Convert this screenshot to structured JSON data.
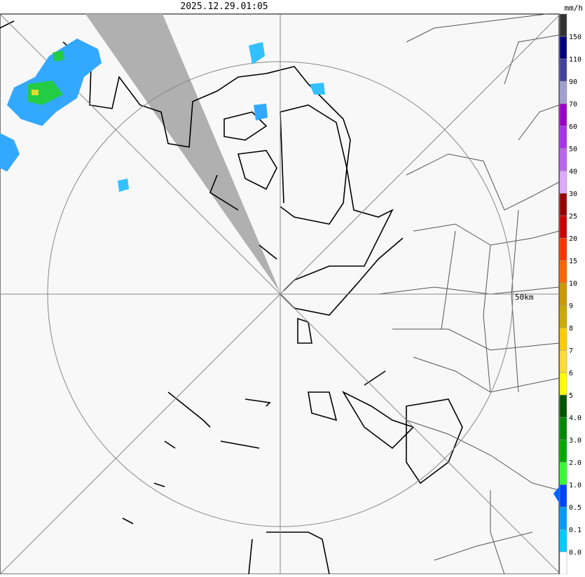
{
  "header": {
    "timestamp": "2025.12.29.01:05"
  },
  "map": {
    "range_label": "50km"
  },
  "legend": {
    "unit": "mm/h",
    "labels": [
      "0.0",
      "0.1",
      "0.5",
      "1.0",
      "2.0",
      "3.0",
      "4.0",
      "5",
      "6",
      "7",
      "8",
      "9",
      "10",
      "15",
      "20",
      "25",
      "30",
      "40",
      "50",
      "60",
      "70",
      "90",
      "110",
      "150"
    ],
    "colors": [
      "#ffffff",
      "#00ccff",
      "#0099ff",
      "#0044ff",
      "#33ff33",
      "#00aa00",
      "#008800",
      "#005500",
      "#ffff00",
      "#ffdd33",
      "#ffcc00",
      "#ccaa00",
      "#cc9900",
      "#ff6600",
      "#ff3300",
      "#cc0000",
      "#990000",
      "#ddaaff",
      "#bb66ee",
      "#aa33ee",
      "#9900cc",
      "#a0a0d0",
      "#4040a0",
      "#000080",
      "#333333"
    ]
  }
}
